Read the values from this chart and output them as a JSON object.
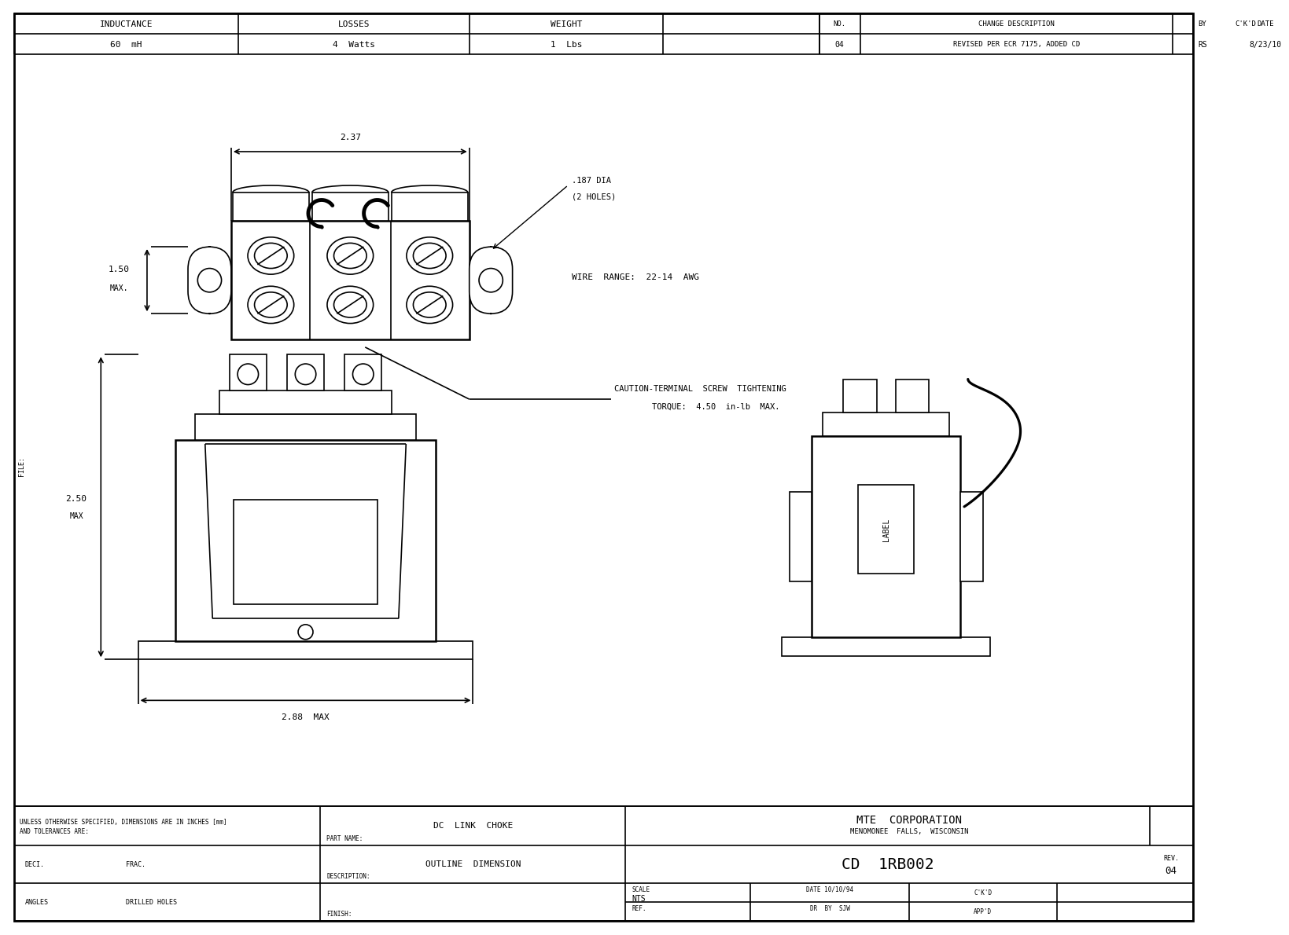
{
  "bg_color": "#ffffff",
  "line_color": "#000000",
  "inductance": "60  mH",
  "losses": "4  Watts",
  "weight": "1  Lbs",
  "rev_no": "04",
  "change_desc": "REVISED PER ECR 7175, ADDED CD",
  "by": "RS",
  "date_rev": "8/23/10",
  "part_name": "DC  LINK  CHOKE",
  "description": "OUTLINE  DIMENSION",
  "company": "MTE  CORPORATION",
  "location": "MENOMONEE  FALLS,  WISCONSIN",
  "drawing_no": "CD  1RB002",
  "rev": "04",
  "scale": "NTS",
  "date_drawn": "10/10/94",
  "dr_by": "SJW",
  "dim_237": "2.37",
  "dim_187": ".187 DIA",
  "holes": "(2 HOLES)",
  "dim_150": "1.50",
  "max_150": "MAX.",
  "wire_range": "WIRE  RANGE:  22-14  AWG",
  "caution": "CAUTION-TERMINAL  SCREW  TIGHTENING",
  "torque": "TORQUE:  4.50  in-lb  MAX.",
  "dim_250": "2.50",
  "max_250": "MAX",
  "dim_288": "2.88  MAX",
  "tolerances_line1": "UNLESS OTHERWISE SPECIFIED, DIMENSIONS ARE IN INCHES [mm]",
  "tolerances_line2": "AND TOLERANCES ARE:",
  "deci": "DECI.",
  "frac": "FRAC.",
  "angles": "ANGLES",
  "drilled_holes": "DRILLED HOLES",
  "file_label": "FILE:"
}
